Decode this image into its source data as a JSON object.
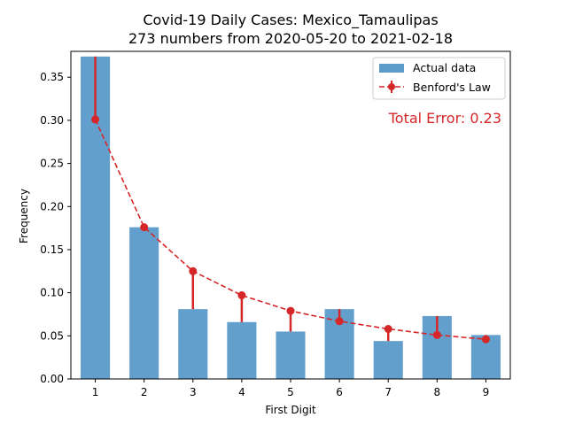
{
  "chart_data": {
    "type": "bar",
    "title_line1": "Covid-19 Daily Cases: Mexico_Tamaulipas",
    "title_line2": "273 numbers from 2020-05-20 to 2021-02-18",
    "xlabel": "First Digit",
    "ylabel": "Frequency",
    "categories": [
      "1",
      "2",
      "3",
      "4",
      "5",
      "6",
      "7",
      "8",
      "9"
    ],
    "ylim": [
      0,
      0.38
    ],
    "yticks": [
      "0.00",
      "0.05",
      "0.10",
      "0.15",
      "0.20",
      "0.25",
      "0.30",
      "0.35"
    ],
    "series": [
      {
        "name": "Actual data",
        "kind": "bar",
        "color": "#5b9ac9",
        "values": [
          0.374,
          0.176,
          0.081,
          0.066,
          0.055,
          0.081,
          0.044,
          0.073,
          0.051
        ]
      },
      {
        "name": "Benford's Law",
        "kind": "line",
        "color": "#d62728",
        "values": [
          0.301,
          0.176,
          0.125,
          0.097,
          0.079,
          0.067,
          0.058,
          0.051,
          0.046
        ]
      }
    ],
    "annotation": "Total Error: 0.23",
    "annotation_color": "#d62728",
    "legend_position": "top-right",
    "grid": false
  }
}
